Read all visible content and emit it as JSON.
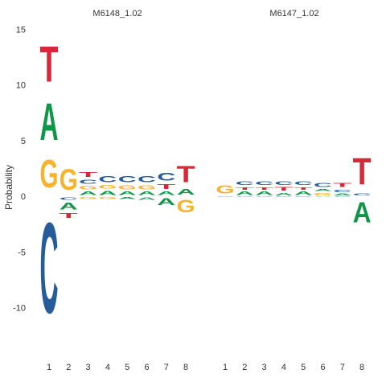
{
  "chart_data": {
    "type": "sequence-logo",
    "ylabel": "Probability",
    "ylim": [
      -13,
      15
    ],
    "yticks": [
      15,
      10,
      5,
      0,
      -5,
      -10
    ],
    "grid": false,
    "letter_colors": {
      "A": "#109648",
      "C": "#255C99",
      "G": "#F7B32B",
      "T": "#D62839"
    },
    "panels": [
      {
        "title": "M6148_1.02",
        "positions": [
          1,
          2,
          3,
          4,
          5,
          6,
          7,
          8
        ],
        "stacks": [
          {
            "up": [
              [
                "G",
                4.0
              ],
              [
                "A",
                5.3
              ],
              [
                "T",
                5.1
              ]
            ],
            "down": [
              [
                "C",
                13.0
              ]
            ]
          },
          {
            "up": [
              [
                "G",
                3.0
              ]
            ],
            "down": [
              [
                "C",
                0.4
              ],
              [
                "A",
                1.0
              ],
              [
                "T",
                0.7
              ]
            ]
          },
          {
            "up": [
              [
                "A",
                0.5
              ],
              [
                "G",
                0.5
              ],
              [
                "C",
                0.6
              ],
              [
                "T",
                0.7
              ]
            ],
            "down": [
              [
                "G",
                0.3
              ]
            ]
          },
          {
            "up": [
              [
                "A",
                0.6
              ],
              [
                "G",
                0.5
              ],
              [
                "C",
                0.9
              ]
            ],
            "down": [
              [
                "G",
                0.3
              ]
            ]
          },
          {
            "up": [
              [
                "A",
                0.5
              ],
              [
                "G",
                0.6
              ],
              [
                "C",
                0.9
              ]
            ],
            "down": [
              [
                "A",
                0.3
              ]
            ]
          },
          {
            "up": [
              [
                "A",
                0.5
              ],
              [
                "G",
                0.6
              ],
              [
                "C",
                0.9
              ]
            ],
            "down": [
              [
                "A",
                0.4
              ]
            ]
          },
          {
            "up": [
              [
                "A",
                0.5
              ],
              [
                "T",
                0.7
              ],
              [
                "C",
                1.1
              ]
            ],
            "down": [
              [
                "A",
                1.0
              ]
            ]
          },
          {
            "up": [
              [
                "A",
                0.8
              ],
              [
                "T",
                2.3
              ]
            ],
            "down": [
              [
                "G",
                1.8
              ]
            ]
          }
        ]
      },
      {
        "title": "M6147_1.02",
        "positions": [
          1,
          2,
          3,
          4,
          5,
          6,
          7,
          8
        ],
        "stacks": [
          {
            "up": [
              [
                "G",
                1.2
              ]
            ],
            "down": [
              [
                "C",
                0.1
              ]
            ]
          },
          {
            "up": [
              [
                "A",
                0.5
              ],
              [
                "T",
                0.4
              ],
              [
                "C",
                0.5
              ]
            ],
            "down": [
              [
                "C",
                0.1
              ]
            ]
          },
          {
            "up": [
              [
                "A",
                0.5
              ],
              [
                "T",
                0.4
              ],
              [
                "C",
                0.5
              ]
            ],
            "down": [
              [
                "C",
                0.1
              ]
            ]
          },
          {
            "up": [
              [
                "A",
                0.4
              ],
              [
                "T",
                0.5
              ],
              [
                "C",
                0.5
              ]
            ],
            "down": [
              [
                "C",
                0.1
              ]
            ]
          },
          {
            "up": [
              [
                "A",
                0.5
              ],
              [
                "T",
                0.4
              ],
              [
                "C",
                0.5
              ]
            ],
            "down": [
              [
                "C",
                0.1
              ]
            ]
          },
          {
            "up": [
              [
                "G",
                0.4
              ],
              [
                "A",
                0.3
              ],
              [
                "C",
                0.6
              ]
            ],
            "down": [
              [
                "A",
                0.1
              ]
            ]
          },
          {
            "up": [
              [
                "A",
                0.3
              ],
              [
                "C",
                0.4
              ],
              [
                "T",
                0.6
              ]
            ],
            "down": [
              [
                "C",
                0.1
              ]
            ]
          },
          {
            "up": [
              [
                "C",
                0.3
              ],
              [
                "T",
                3.8
              ]
            ],
            "down": [
              [
                "A",
                2.9
              ]
            ]
          }
        ]
      }
    ]
  }
}
